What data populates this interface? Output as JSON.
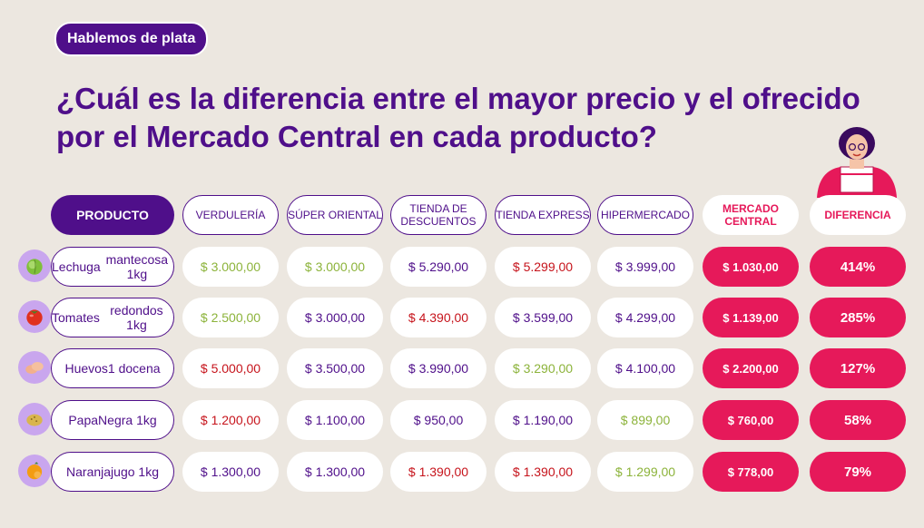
{
  "badge": "Hablemos de plata",
  "title": "¿Cuál es la diferencia entre el mayor precio y el ofrecido por el Mercado Central en cada producto?",
  "colors": {
    "purple": "#4f0f8a",
    "red": "#e6195a",
    "green": "#8cb33a",
    "dark_red": "#c6131b",
    "neutral": "#4f0f8a"
  },
  "headers": {
    "producto": "PRODUCTO",
    "verduleria": "VERDULERÍA",
    "super_oriental": "SÚPER ORIENTAL",
    "tienda_descuentos": "TIENDA DE DESCUENTOS",
    "tienda_express": "TIENDA EXPRESS",
    "hipermercado": "HIPERMERCADO",
    "mercado_central": "MERCADO CENTRAL",
    "diferencia": "DIFERENCIA"
  },
  "rows": [
    {
      "product_line1": "Lechuga",
      "product_line2": "mantecosa 1kg",
      "icon": "lettuce-icon",
      "prices": [
        {
          "value": "$ 3.000,00",
          "status": "low"
        },
        {
          "value": "$ 3.000,00",
          "status": "low"
        },
        {
          "value": "$ 5.290,00",
          "status": "mid"
        },
        {
          "value": "$ 5.299,00",
          "status": "high"
        },
        {
          "value": "$ 3.999,00",
          "status": "mid"
        }
      ],
      "mercado_central": "$ 1.030,00",
      "diferencia": "414%"
    },
    {
      "product_line1": "Tomates",
      "product_line2": "redondos 1kg",
      "icon": "tomato-icon",
      "prices": [
        {
          "value": "$ 2.500,00",
          "status": "low"
        },
        {
          "value": "$ 3.000,00",
          "status": "mid"
        },
        {
          "value": "$ 4.390,00",
          "status": "high"
        },
        {
          "value": "$ 3.599,00",
          "status": "mid"
        },
        {
          "value": "$ 4.299,00",
          "status": "mid"
        }
      ],
      "mercado_central": "$ 1.139,00",
      "diferencia": "285%"
    },
    {
      "product_line1": "Huevos",
      "product_line2": "1 docena",
      "icon": "eggs-icon",
      "prices": [
        {
          "value": "$ 5.000,00",
          "status": "high"
        },
        {
          "value": "$ 3.500,00",
          "status": "mid"
        },
        {
          "value": "$ 3.990,00",
          "status": "mid"
        },
        {
          "value": "$ 3.290,00",
          "status": "low"
        },
        {
          "value": "$ 4.100,00",
          "status": "mid"
        }
      ],
      "mercado_central": "$ 2.200,00",
      "diferencia": "127%"
    },
    {
      "product_line1": "Papa",
      "product_line2": "Negra 1kg",
      "icon": "potato-icon",
      "prices": [
        {
          "value": "$ 1.200,00",
          "status": "high"
        },
        {
          "value": "$ 1.100,00",
          "status": "mid"
        },
        {
          "value": "$ 950,00",
          "status": "mid"
        },
        {
          "value": "$ 1.190,00",
          "status": "mid"
        },
        {
          "value": "$ 899,00",
          "status": "low"
        }
      ],
      "mercado_central": "$ 760,00",
      "diferencia": "58%"
    },
    {
      "product_line1": "Naranja",
      "product_line2": "jugo 1kg",
      "icon": "orange-icon",
      "prices": [
        {
          "value": "$ 1.300,00",
          "status": "mid"
        },
        {
          "value": "$ 1.300,00",
          "status": "mid"
        },
        {
          "value": "$ 1.390,00",
          "status": "high"
        },
        {
          "value": "$ 1.390,00",
          "status": "high"
        },
        {
          "value": "$ 1.299,00",
          "status": "low"
        }
      ],
      "mercado_central": "$ 778,00",
      "diferencia": "79%"
    }
  ]
}
